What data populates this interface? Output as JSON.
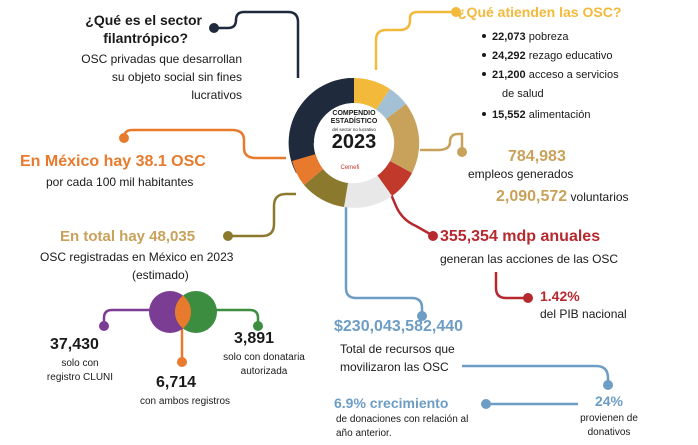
{
  "center": {
    "line1": "COMPENDIO",
    "line2": "ESTADÍSTICO",
    "line3": "del sector no lucrativo",
    "year": "2023",
    "logo": "Cemefi"
  },
  "colors": {
    "navy": "#1f2a3c",
    "yellow": "#f2b93b",
    "lightblue": "#a3c0d5",
    "gold": "#c8a25a",
    "red": "#c0392b",
    "olive": "#8b7a2e",
    "orange": "#e87a2e",
    "purple": "#7b3c94",
    "green": "#3c8d3f",
    "crimson": "#b5292f",
    "steelblue": "#6d9dc5"
  },
  "q1": {
    "title_l1": "¿Qué es el  sector",
    "title_l2": "filantrópico?",
    "body_l1": "OSC privadas que desarrollan",
    "body_l2": "su objeto social sin fines",
    "body_l3": "lucrativos"
  },
  "q2": {
    "title": "¿Qué atienden las OSC?",
    "items": [
      {
        "num": "22,073",
        "text": " pobreza"
      },
      {
        "num": "24,292",
        "text": " rezago educativo"
      },
      {
        "num": "21,200",
        "text": " acceso a servicios"
      },
      {
        "num": "15,552",
        "text": " alimentación"
      }
    ],
    "cont": "de salud"
  },
  "density": {
    "headline": "En México hay 38.1 OSC",
    "sub": "por cada 100 mil  habitantes"
  },
  "jobs": {
    "num": "784,983",
    "label": "empleos generados",
    "vol_num": "2,090,572",
    "vol_label": " voluntarios"
  },
  "total": {
    "headline": "En total hay 48,035",
    "sub_l1": "OSC registradas en México en 2023",
    "sub_l2": "(estimado)"
  },
  "gdp": {
    "headline": "355,354 mdp anuales",
    "sub": "generan las acciones de las OSC",
    "pct": "1.42%",
    "pct_label": "del PIB nacional"
  },
  "venn": {
    "cluni_num": "37,430",
    "cluni_l1": "solo con",
    "cluni_l2": "registro CLUNI",
    "both_num": "6,714",
    "both_label": "con ambos registros",
    "don_num": "3,891",
    "don_l1": "solo con donataria",
    "don_l2": "autorizada"
  },
  "resources": {
    "num": "$230,043,582,440",
    "l1": "Total de recursos que",
    "l2": "movilizaron las OSC"
  },
  "growth": {
    "headline": "6.9% crecimiento",
    "l1": "de donaciones con relación al",
    "l2": "año anterior."
  },
  "donations": {
    "pct": "24%",
    "l1": "provienen de",
    "l2": "donativos"
  }
}
